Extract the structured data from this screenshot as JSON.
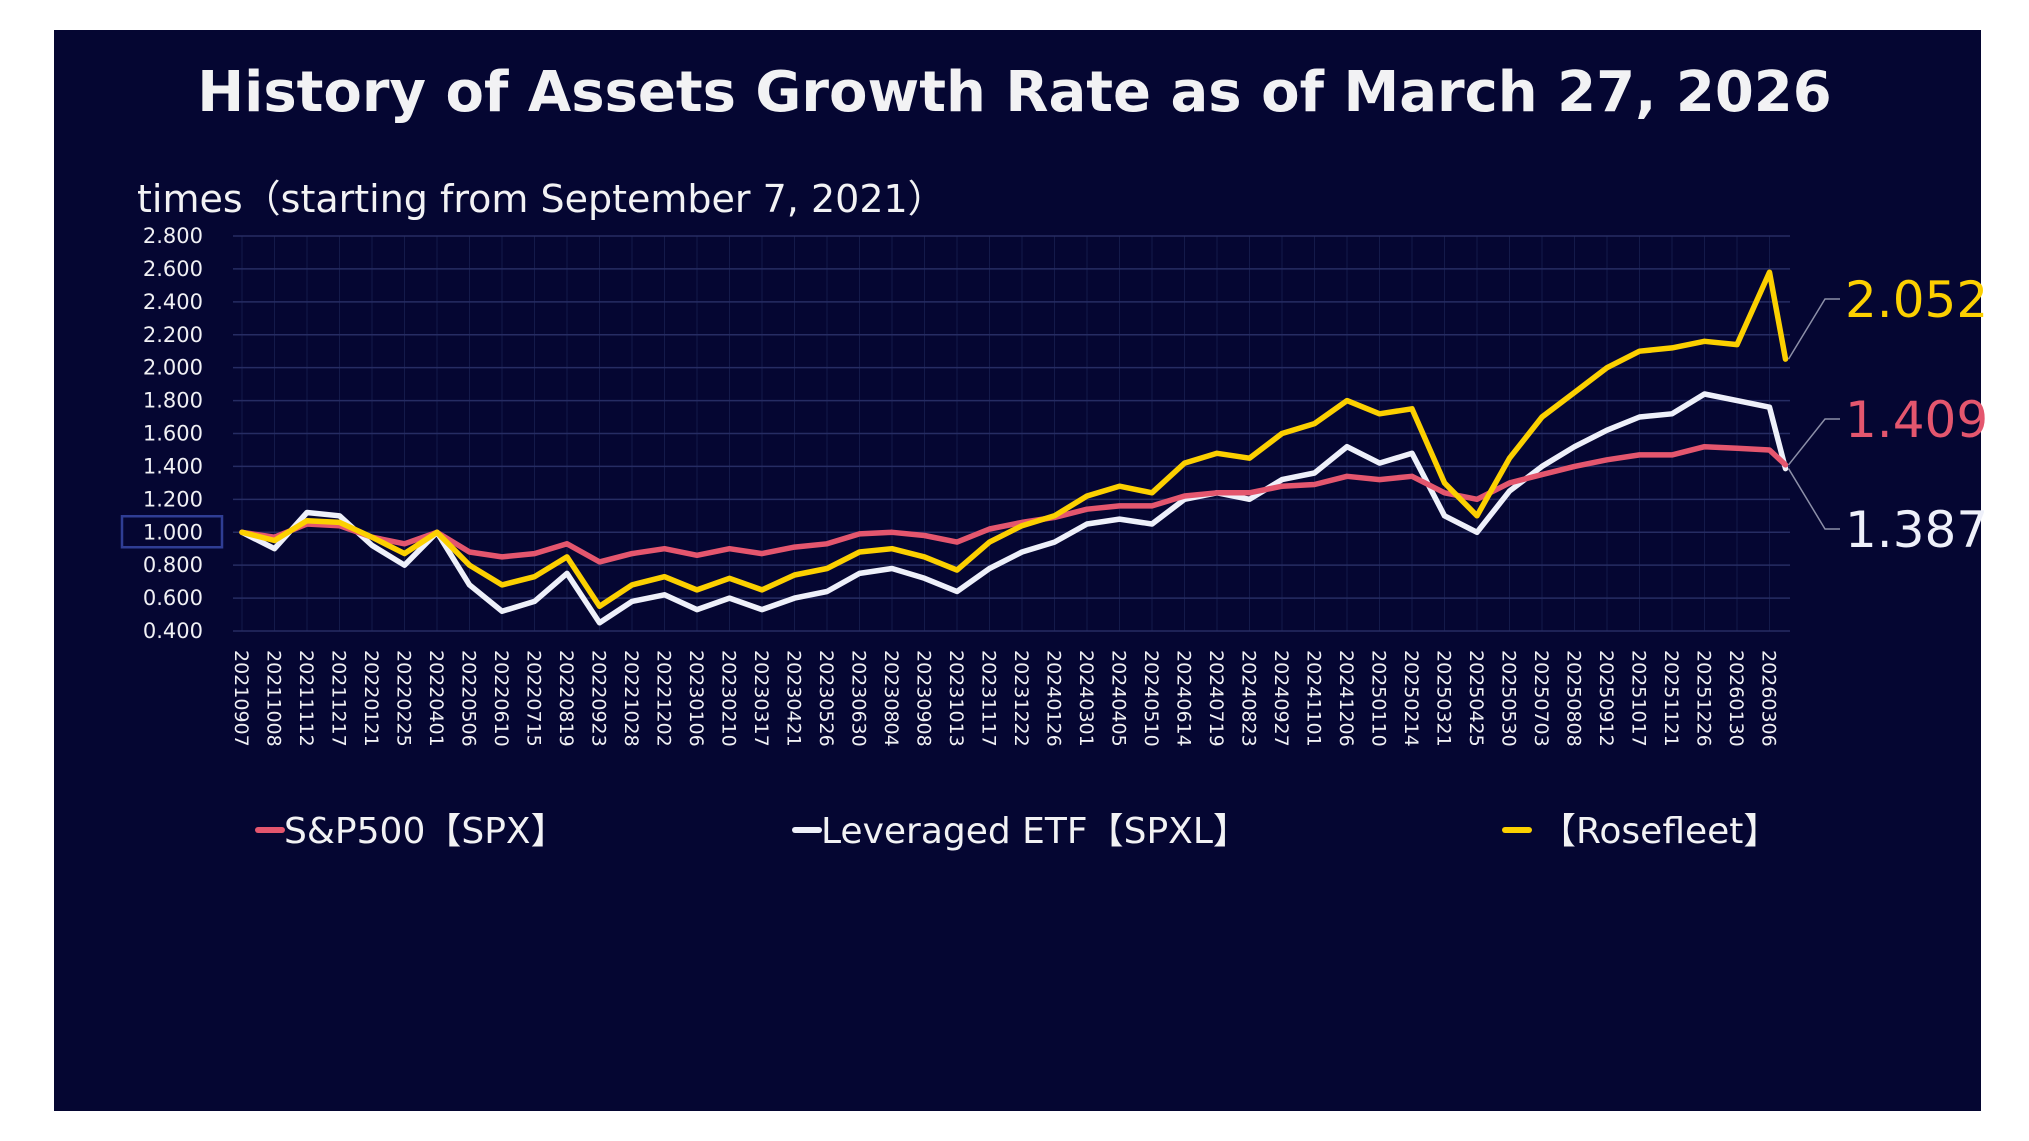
{
  "chart_data": {
    "type": "line",
    "title": "History of Assets Growth Rate as of March 27, 2026",
    "ylabel": "times（starting from September 7, 2021）",
    "xlabel": "",
    "ylim": [
      0.4,
      2.8
    ],
    "yticks": [
      "2.800",
      "2.600",
      "2.400",
      "2.200",
      "2.000",
      "1.800",
      "1.600",
      "1.400",
      "1.200",
      "1.000",
      "0.800",
      "0.600",
      "0.400"
    ],
    "highlighted_ytick": "1.000",
    "grid": true,
    "legend_position": "bottom",
    "x": [
      "20210907",
      "20211008",
      "20211112",
      "20211217",
      "20220121",
      "20220225",
      "20220401",
      "20220506",
      "20220610",
      "20220715",
      "20220819",
      "20220923",
      "20221028",
      "20221202",
      "20230106",
      "20230210",
      "20230317",
      "20230421",
      "20230526",
      "20230630",
      "20230804",
      "20230908",
      "20231013",
      "20231117",
      "20231222",
      "20240126",
      "20240301",
      "20240405",
      "20240510",
      "20240614",
      "20240719",
      "20240823",
      "20240927",
      "20241101",
      "20241206",
      "20250110",
      "20250214",
      "20250321",
      "20250425",
      "20250530",
      "20250703",
      "20250808",
      "20250912",
      "20251017",
      "20251121",
      "20251226",
      "20260130",
      "20260306",
      "20260327"
    ],
    "xtick_labels": [
      "20210907",
      "20211008",
      "20211112",
      "20211217",
      "20220121",
      "20220225",
      "20220401",
      "20220506",
      "20220610",
      "20220715",
      "20220819",
      "20220923",
      "20221028",
      "20221202",
      "20230106",
      "20230210",
      "20230317",
      "20230421",
      "20230526",
      "20230630",
      "20230804",
      "20230908",
      "20231013",
      "20231117",
      "20231222",
      "20240126",
      "20240301",
      "20240405",
      "20240510",
      "20240614",
      "20240719",
      "20240823",
      "20240927",
      "20241101",
      "20241206",
      "20250110",
      "20250214",
      "20250321",
      "20250425",
      "20250530",
      "20250703",
      "20250808",
      "20250912",
      "20251017",
      "20251121",
      "20251226",
      "20260130",
      "20260306"
    ],
    "series": [
      {
        "name": "S&P500【SPX】",
        "color": "#e4566e",
        "values": [
          1.0,
          0.97,
          1.05,
          1.04,
          0.97,
          0.93,
          1.0,
          0.88,
          0.85,
          0.87,
          0.93,
          0.82,
          0.87,
          0.9,
          0.86,
          0.9,
          0.87,
          0.91,
          0.93,
          0.99,
          1.0,
          0.98,
          0.94,
          1.02,
          1.06,
          1.09,
          1.14,
          1.16,
          1.16,
          1.22,
          1.24,
          1.24,
          1.28,
          1.29,
          1.34,
          1.32,
          1.34,
          1.24,
          1.2,
          1.3,
          1.35,
          1.4,
          1.44,
          1.47,
          1.47,
          1.52,
          1.51,
          1.5,
          1.409
        ],
        "end_label": "1.409"
      },
      {
        "name": "Leveraged ETF【SPXL】",
        "color": "#eef0fa",
        "values": [
          1.0,
          0.9,
          1.12,
          1.1,
          0.92,
          0.8,
          1.0,
          0.68,
          0.52,
          0.58,
          0.75,
          0.45,
          0.58,
          0.62,
          0.53,
          0.6,
          0.53,
          0.6,
          0.64,
          0.75,
          0.78,
          0.72,
          0.64,
          0.78,
          0.88,
          0.94,
          1.05,
          1.08,
          1.05,
          1.2,
          1.24,
          1.2,
          1.32,
          1.36,
          1.52,
          1.42,
          1.48,
          1.1,
          1.0,
          1.25,
          1.4,
          1.52,
          1.62,
          1.7,
          1.72,
          1.84,
          1.8,
          1.76,
          1.387
        ],
        "end_label": "1.387"
      },
      {
        "name": "【Rosefleet】",
        "color": "#fcd000",
        "values": [
          1.0,
          0.95,
          1.07,
          1.06,
          0.97,
          0.87,
          1.0,
          0.8,
          0.68,
          0.73,
          0.85,
          0.55,
          0.68,
          0.73,
          0.65,
          0.72,
          0.65,
          0.74,
          0.78,
          0.88,
          0.9,
          0.85,
          0.77,
          0.94,
          1.04,
          1.1,
          1.22,
          1.28,
          1.24,
          1.42,
          1.48,
          1.45,
          1.6,
          1.66,
          1.8,
          1.72,
          1.75,
          1.3,
          1.1,
          1.45,
          1.7,
          1.85,
          2.0,
          2.1,
          2.12,
          2.16,
          2.14,
          2.58,
          2.052
        ],
        "end_label": "2.052"
      }
    ]
  }
}
